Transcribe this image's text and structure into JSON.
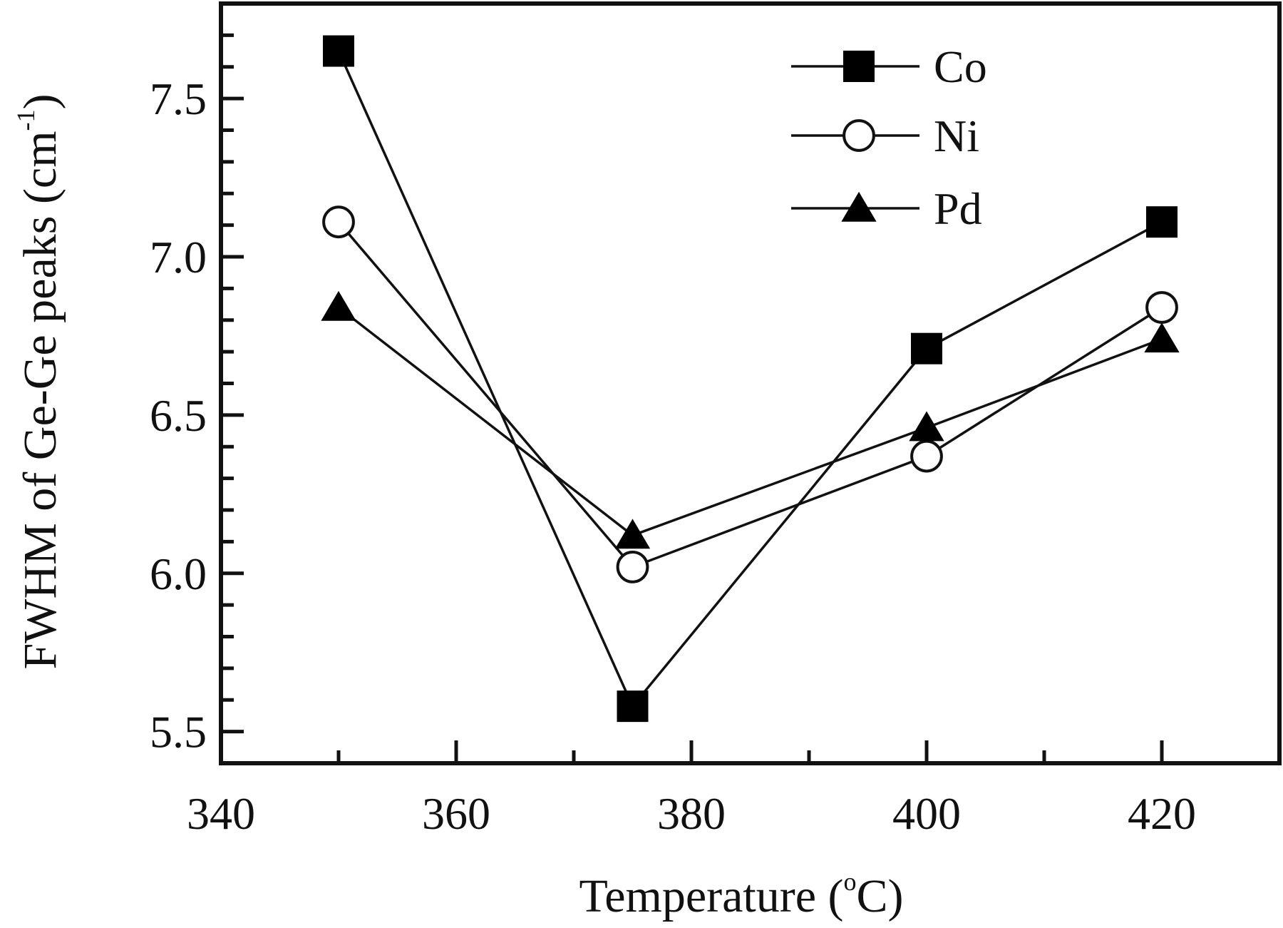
{
  "chart_data": {
    "type": "line",
    "title": "",
    "xlabel": "Temperature",
    "xlabel_unit_open": " (",
    "xlabel_unit_sup": "o",
    "xlabel_unit_close": "C)",
    "ylabel": "FWHM of Ge-Ge peaks (cm",
    "ylabel_sup": "-1",
    "ylabel_close": ")",
    "xlim": [
      340,
      430
    ],
    "ylim": [
      5.4,
      7.8
    ],
    "x_ticks": [
      340,
      360,
      380,
      400,
      420
    ],
    "x_tick_labels": [
      "340",
      "360",
      "380",
      "400",
      "420"
    ],
    "x_minor_ticks": [
      350,
      370,
      390,
      410
    ],
    "y_ticks": [
      5.5,
      6.0,
      6.5,
      7.0,
      7.5
    ],
    "y_tick_labels": [
      "5.5",
      "6.0",
      "6.5",
      "7.0",
      "7.5"
    ],
    "y_minor_ticks": [
      5.6,
      5.7,
      5.8,
      5.9,
      6.1,
      6.2,
      6.3,
      6.4,
      6.6,
      6.7,
      6.8,
      6.9,
      7.1,
      7.2,
      7.3,
      7.4,
      7.6,
      7.7
    ],
    "grid": false,
    "legend_position": "top-right",
    "x": [
      350,
      375,
      400,
      420
    ],
    "series": [
      {
        "name": "Co",
        "marker": "filled-square",
        "values": [
          7.65,
          5.58,
          6.71,
          7.11
        ]
      },
      {
        "name": "Ni",
        "marker": "open-circle",
        "values": [
          7.11,
          6.02,
          6.37,
          6.84
        ]
      },
      {
        "name": "Pd",
        "marker": "filled-triangle",
        "values": [
          6.84,
          6.12,
          6.46,
          6.74
        ]
      }
    ],
    "colors": {
      "line": "#111111",
      "marker_fill": "#000000",
      "open_fill": "#ffffff"
    }
  }
}
